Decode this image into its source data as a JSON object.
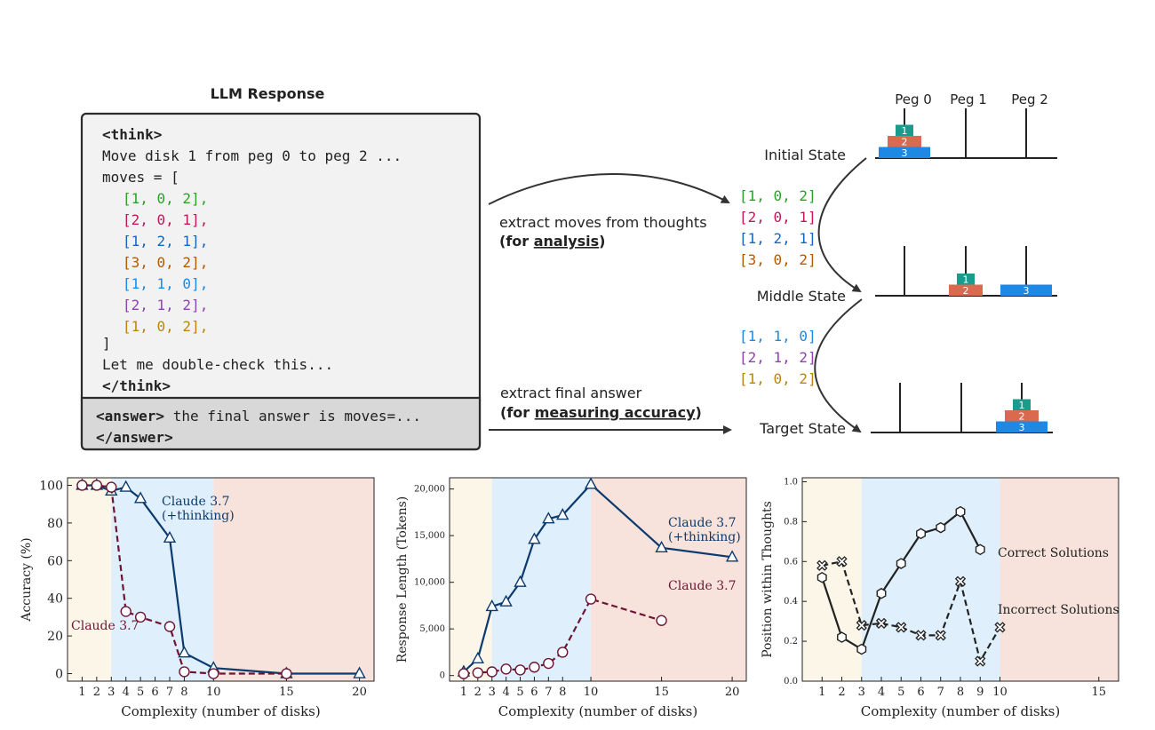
{
  "diagram": {
    "response_title": "LLM Response",
    "think_open": "<think>",
    "think_line1": "Move disk 1 from peg 0 to peg 2 ...",
    "moves_open": "moves = [",
    "moves": [
      {
        "text": "[1, 0, 2],",
        "color": "#2ca02c"
      },
      {
        "text": "[2, 0, 1],",
        "color": "#c2185b"
      },
      {
        "text": "[1, 2, 1],",
        "color": "#1565c0"
      },
      {
        "text": "[3, 0, 2],",
        "color": "#b35900"
      },
      {
        "text": "[1, 1, 0],",
        "color": "#1e88e5"
      },
      {
        "text": "[2, 1, 2],",
        "color": "#8e44ad"
      },
      {
        "text": "[1, 0, 2],",
        "color": "#b8860b"
      }
    ],
    "moves_close": "]",
    "double_check": "Let me double-check this...",
    "think_close": "</think>",
    "answer_tag": "<answer>",
    "answer_text": " the final answer is moves=...",
    "answer_close": "</answer>",
    "extract_moves_1": "extract moves  from thoughts",
    "extract_moves_2_pre": "(for ",
    "extract_moves_2_u": "analysis",
    "extract_moves_2_post": ")",
    "extract_final_1": "extract final answer",
    "extract_final_2_pre": "(for ",
    "extract_final_2_u": "measuring accuracy",
    "extract_final_2_post": ")",
    "mid_moves_top": [
      {
        "text": "[1, 0, 2]",
        "color": "#2ca02c"
      },
      {
        "text": "[2, 0, 1]",
        "color": "#c2185b"
      },
      {
        "text": "[1, 2, 1]",
        "color": "#1565c0"
      },
      {
        "text": "[3, 0, 2]",
        "color": "#b35900"
      }
    ],
    "mid_moves_bottom": [
      {
        "text": "[1, 1, 0]",
        "color": "#1e88e5"
      },
      {
        "text": "[2, 1, 2]",
        "color": "#8e44ad"
      },
      {
        "text": "[1, 0, 2]",
        "color": "#b8860b"
      }
    ],
    "peg_labels": [
      "Peg 0",
      "Peg 1",
      "Peg 2"
    ],
    "states": [
      "Initial State",
      "Middle State",
      "Target State"
    ],
    "disk_labels": [
      "1",
      "2",
      "3"
    ],
    "disk_colors": {
      "1": "#1a9c8c",
      "2": "#d9694f",
      "3": "#1e88e5"
    }
  },
  "chart_data": [
    {
      "type": "line",
      "xlabel": "Complexity (number of disks)",
      "ylabel": "Accuracy (%)",
      "xlim": [
        0,
        21
      ],
      "ylim": [
        -4,
        104
      ],
      "xticks": [
        1,
        2,
        3,
        4,
        5,
        6,
        7,
        8,
        10,
        15,
        20
      ],
      "yticks": [
        0,
        20,
        40,
        60,
        80,
        100
      ],
      "ytick_labels": [
        "0",
        "20",
        "40",
        "60",
        "80",
        "100"
      ],
      "regions": [
        {
          "from": 0,
          "to": 3,
          "color": "#fbf6e8"
        },
        {
          "from": 3,
          "to": 10,
          "color": "#dfeffb"
        },
        {
          "from": 10,
          "to": 21,
          "color": "#f8e3dc"
        }
      ],
      "series": [
        {
          "name": "Claude 3.7 (+thinking)",
          "label_lines": [
            "Claude 3.7",
            "(+thinking)"
          ],
          "color": "#0b3a6e",
          "dash": false,
          "marker": "triangle",
          "x": [
            1,
            2,
            3,
            4,
            5,
            7,
            8,
            10,
            15,
            20
          ],
          "y": [
            100,
            100,
            97,
            99,
            93,
            72,
            11,
            3,
            0,
            0
          ]
        },
        {
          "name": "Claude 3.7",
          "label_lines": [
            "Claude 3.7"
          ],
          "color": "#6d1535",
          "dash": true,
          "marker": "circle",
          "x": [
            1,
            2,
            3,
            4,
            5,
            7,
            8,
            10,
            15
          ],
          "y": [
            100,
            100,
            99,
            33,
            30,
            25,
            1,
            0,
            0
          ]
        }
      ]
    },
    {
      "type": "line",
      "xlabel": "Complexity (number of disks)",
      "ylabel": "Response Length (Tokens)",
      "xlim": [
        0,
        21
      ],
      "ylim": [
        -600,
        21200
      ],
      "xticks": [
        1,
        2,
        3,
        4,
        5,
        6,
        7,
        8,
        10,
        15,
        20
      ],
      "yticks": [
        0,
        5000,
        10000,
        15000,
        20000
      ],
      "ytick_labels": [
        "0",
        "5,000",
        "10,000",
        "15,000",
        "20,000"
      ],
      "regions": [
        {
          "from": 0,
          "to": 3,
          "color": "#fbf6e8"
        },
        {
          "from": 3,
          "to": 10,
          "color": "#dfeffb"
        },
        {
          "from": 10,
          "to": 21,
          "color": "#f8e3dc"
        }
      ],
      "series": [
        {
          "name": "Claude 3.7 (+thinking)",
          "label_lines": [
            "Claude 3.7",
            "(+thinking)"
          ],
          "color": "#0b3a6e",
          "dash": false,
          "marker": "triangle",
          "x": [
            1,
            2,
            3,
            4,
            5,
            6,
            7,
            8,
            10,
            15,
            20
          ],
          "y": [
            400,
            1800,
            7400,
            7900,
            10000,
            14600,
            16800,
            17200,
            20500,
            13700,
            12700
          ]
        },
        {
          "name": "Claude 3.7",
          "label_lines": [
            "Claude 3.7"
          ],
          "color": "#6d1535",
          "dash": true,
          "marker": "circle",
          "x": [
            1,
            2,
            3,
            4,
            5,
            6,
            7,
            8,
            10,
            15
          ],
          "y": [
            200,
            300,
            400,
            700,
            600,
            900,
            1300,
            2500,
            8200,
            5900
          ]
        }
      ]
    },
    {
      "type": "line",
      "xlabel": "Complexity (number of disks)",
      "ylabel": "Position within Thoughts",
      "xlim": [
        0,
        16
      ],
      "ylim": [
        0,
        1.02
      ],
      "xticks": [
        1,
        2,
        3,
        4,
        5,
        6,
        7,
        8,
        9,
        10,
        15
      ],
      "yticks": [
        0,
        0.2,
        0.4,
        0.6,
        0.8,
        1.0
      ],
      "ytick_labels": [
        "0.0",
        "0.2",
        "0.4",
        "0.6",
        "0.8",
        "1.0"
      ],
      "regions": [
        {
          "from": 0,
          "to": 3,
          "color": "#fbf6e8"
        },
        {
          "from": 3,
          "to": 10,
          "color": "#dfeffb"
        },
        {
          "from": 10,
          "to": 16,
          "color": "#f8e3dc"
        }
      ],
      "series": [
        {
          "name": "Correct Solutions",
          "label_lines": [
            "Correct Solutions"
          ],
          "color": "#222222",
          "dash": false,
          "marker": "hexagon",
          "x": [
            1,
            2,
            3,
            4,
            5,
            6,
            7,
            8,
            9
          ],
          "y": [
            0.52,
            0.22,
            0.16,
            0.44,
            0.59,
            0.74,
            0.77,
            0.85,
            0.66
          ]
        },
        {
          "name": "Incorrect Solutions",
          "label_lines": [
            "Incorrect Solutions"
          ],
          "color": "#222222",
          "dash": true,
          "marker": "cross",
          "x": [
            1,
            2,
            3,
            4,
            5,
            6,
            7,
            8,
            9,
            10
          ],
          "y": [
            0.58,
            0.6,
            0.28,
            0.29,
            0.27,
            0.23,
            0.23,
            0.5,
            0.1,
            0.27
          ]
        }
      ]
    }
  ]
}
